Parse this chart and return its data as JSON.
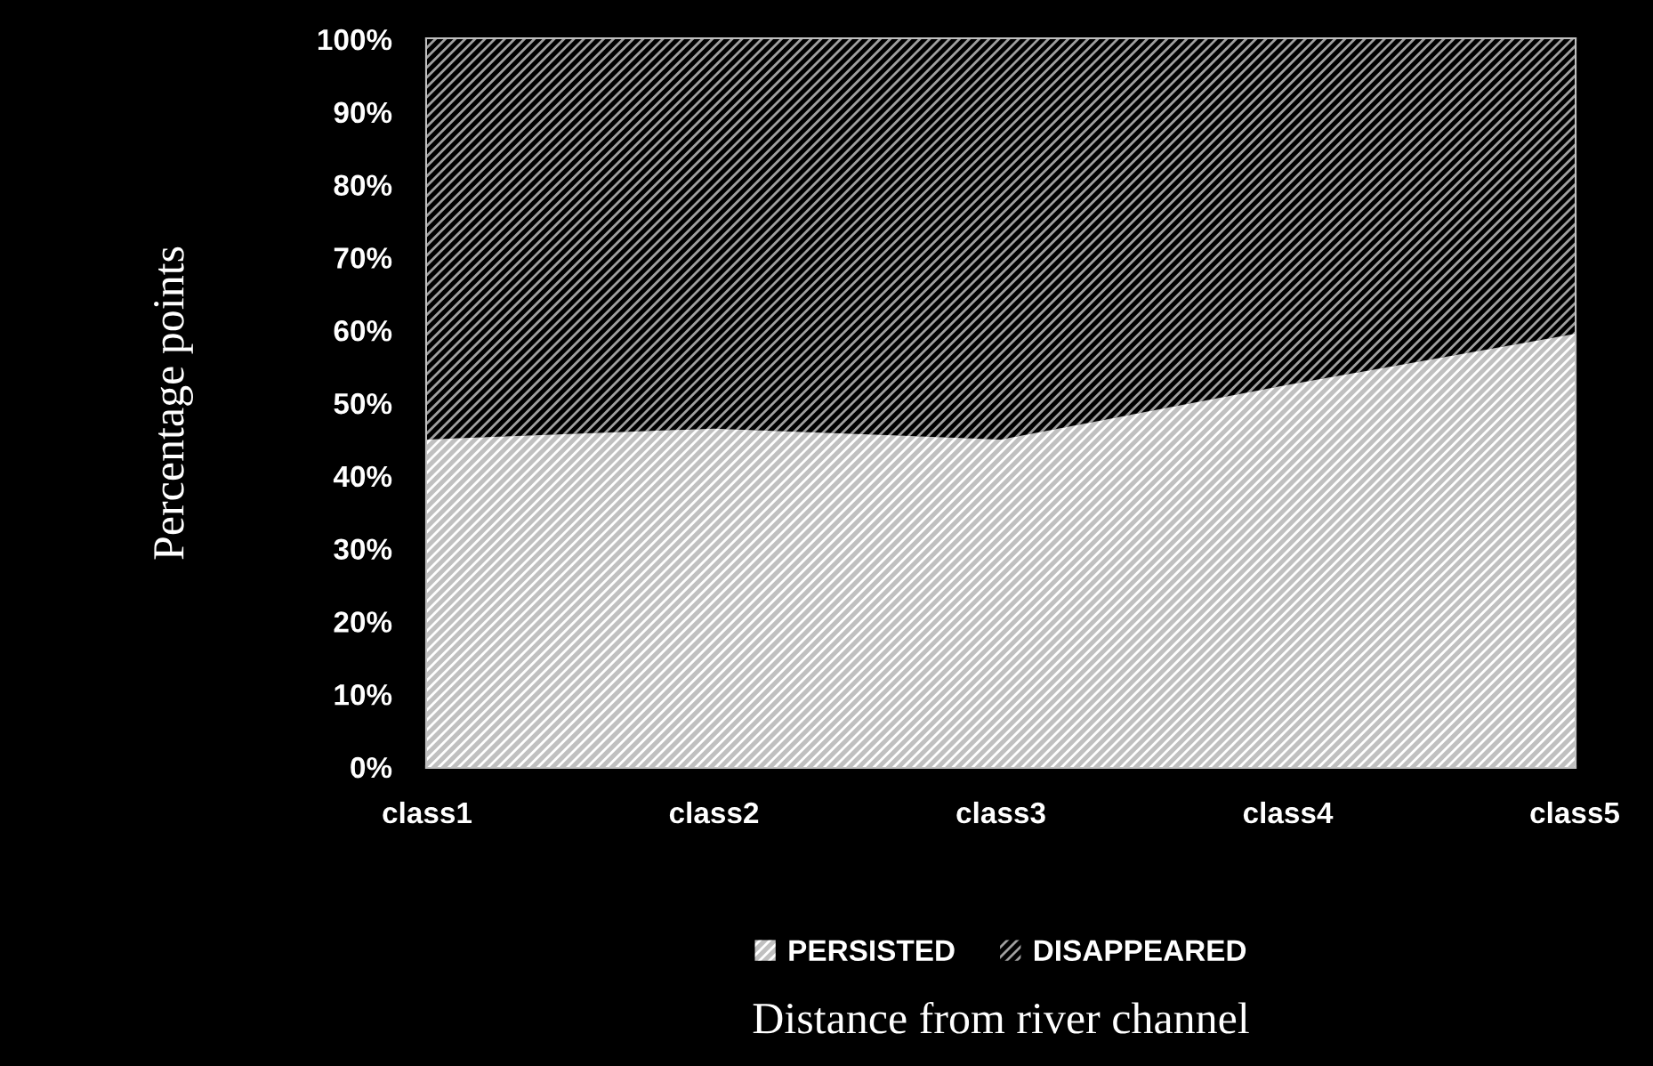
{
  "chart_data": {
    "type": "area",
    "stacked": true,
    "xlabel": "Distance from river channel",
    "ylabel": "Percentage points",
    "categories": [
      "class1",
      "class2",
      "class3",
      "class4",
      "class5"
    ],
    "series": [
      {
        "name": "PERSISTED",
        "color": "#c0c0c0",
        "values": [
          45,
          46.5,
          45,
          52.5,
          59.5
        ]
      },
      {
        "name": "DISAPPEARED",
        "color": "#000000",
        "values": [
          55,
          53.5,
          55,
          47.5,
          40.5
        ]
      }
    ],
    "ylim": [
      0,
      100
    ],
    "yticks": [
      {
        "value": 0,
        "label": "0%"
      },
      {
        "value": 10,
        "label": "10%"
      },
      {
        "value": 20,
        "label": "20%"
      },
      {
        "value": 30,
        "label": "30%"
      },
      {
        "value": 40,
        "label": "40%"
      },
      {
        "value": 50,
        "label": "50%"
      },
      {
        "value": 60,
        "label": "60%"
      },
      {
        "value": 70,
        "label": "70%"
      },
      {
        "value": 80,
        "label": "80%"
      },
      {
        "value": 90,
        "label": "90%"
      },
      {
        "value": 100,
        "label": "100%"
      }
    ],
    "grid": false,
    "legend": "bottom"
  }
}
